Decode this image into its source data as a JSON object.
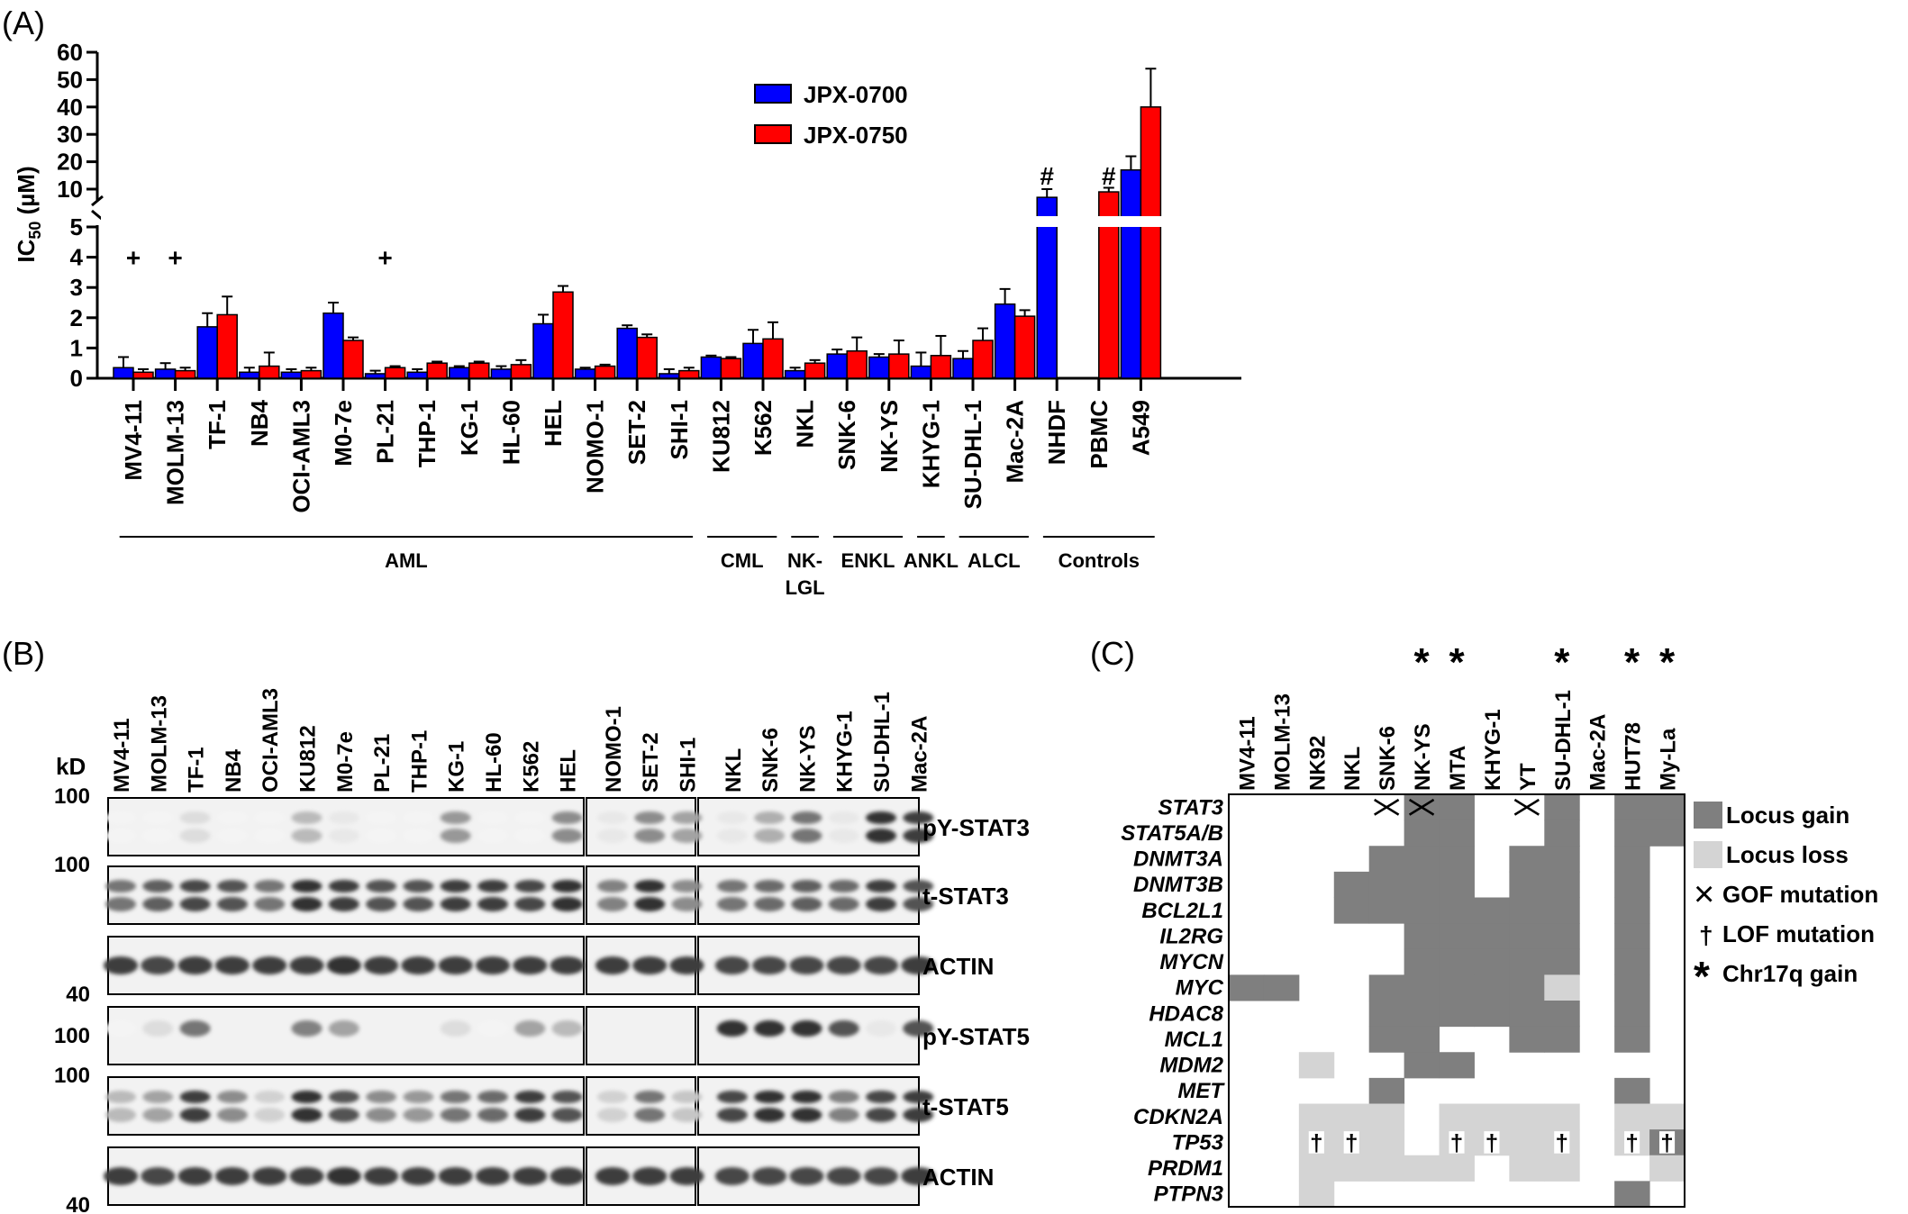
{
  "panel_labels": {
    "a": "(A)",
    "b": "(B)",
    "c": "(C)"
  },
  "colors": {
    "jpx0700": "#0000ff",
    "jpx0750": "#ff0000",
    "legend_0700_text": "#1a6fd6",
    "legend_0750_text": "#ff0000",
    "gain": "#7f7f7f",
    "loss": "#d4d4d4",
    "chr17q": "#ff0000"
  },
  "chart_data": [
    {
      "type": "bar",
      "ylabel_main": "IC",
      "ylabel_sub": "50",
      "ylabel_unit": " (µM)",
      "y_axis_break": true,
      "ylim_lower": [
        0,
        5
      ],
      "ylim_upper": [
        10,
        60
      ],
      "yticks_lower": [
        "0",
        "1",
        "2",
        "3",
        "4",
        "5"
      ],
      "yticks_upper": [
        "10",
        "20",
        "30",
        "40",
        "50",
        "60"
      ],
      "series": [
        {
          "name": "JPX-0700",
          "color": "#0000ff",
          "values": [
            0.35,
            0.3,
            1.7,
            0.2,
            0.2,
            2.15,
            0.15,
            0.2,
            0.35,
            0.3,
            1.8,
            0.3,
            1.65,
            0.15,
            0.7,
            1.15,
            0.25,
            0.8,
            0.7,
            0.4,
            0.65,
            2.45,
            7,
            null,
            17
          ],
          "errors": [
            0.35,
            0.2,
            0.45,
            0.15,
            0.1,
            0.35,
            0.1,
            0.1,
            0.05,
            0.1,
            0.3,
            0.05,
            0.1,
            0.15,
            0.05,
            0.45,
            0.1,
            0.15,
            0.1,
            0.45,
            0.25,
            0.5,
            3,
            null,
            5
          ]
        },
        {
          "name": "JPX-0750",
          "color": "#ff0000",
          "values": [
            0.2,
            0.25,
            2.1,
            0.4,
            0.25,
            1.25,
            0.35,
            0.5,
            0.5,
            0.45,
            2.85,
            0.4,
            1.35,
            0.25,
            0.65,
            1.3,
            0.5,
            0.9,
            0.8,
            0.75,
            1.25,
            2.05,
            null,
            9,
            40
          ],
          "errors": [
            0.1,
            0.1,
            0.6,
            0.45,
            0.1,
            0.1,
            0.05,
            0.05,
            0.05,
            0.15,
            0.2,
            0.05,
            0.1,
            0.1,
            0.05,
            0.55,
            0.1,
            0.45,
            0.45,
            0.65,
            0.4,
            0.2,
            null,
            1.5,
            14
          ]
        }
      ],
      "categories": [
        "MV4-11",
        "MOLM-13",
        "TF-1",
        "NB4",
        "OCI-AML3",
        "M0-7e",
        "PL-21",
        "THP-1",
        "KG-1",
        "HL-60",
        "HEL",
        "NOMO-1",
        "SET-2",
        "SHI-1",
        "KU812",
        "K562",
        "NKL",
        "SNK-6",
        "NK-YS",
        "KHYG-1",
        "SU-DHL-1",
        "Mac-2A",
        "NHDF",
        "PBMC",
        "A549"
      ],
      "annotations": [
        {
          "category_index": 0,
          "text": "+",
          "y": 4
        },
        {
          "category_index": 1,
          "text": "+",
          "y": 4
        },
        {
          "category_index": 6,
          "text": "+",
          "y": 4
        },
        {
          "category_index": 22,
          "text": "#",
          "y": 15
        },
        {
          "category_index": 23,
          "text": "#",
          "y": 15
        }
      ],
      "groups": [
        {
          "label": "AML",
          "from": 0,
          "to": 13
        },
        {
          "label": "CML",
          "from": 14,
          "to": 15
        },
        {
          "label": "NK-",
          "label2": "LGL",
          "from": 16,
          "to": 16
        },
        {
          "label": "ENKL",
          "from": 17,
          "to": 18
        },
        {
          "label": "ANKL",
          "from": 19,
          "to": 19
        },
        {
          "label": "ALCL",
          "from": 20,
          "to": 21
        },
        {
          "label": "Controls",
          "from": 22,
          "to": 24
        }
      ]
    },
    {
      "type": "heatmap",
      "columns": [
        "MV4-11",
        "MOLM-13",
        "NK92",
        "NKL",
        "SNK-6",
        "NK-YS",
        "MTA",
        "KHYG-1",
        "YT",
        "SU-DHL-1",
        "Mac-2A",
        "HUT78",
        "My-La"
      ],
      "chr17q_gain_columns": [
        5,
        6,
        9,
        11,
        12
      ],
      "rows": [
        "STAT3",
        "STAT5A/B",
        "DNMT3A",
        "DNMT3B",
        "BCL2L1",
        "IL2RG",
        "MYCN",
        "MYC",
        "HDAC8",
        "MCL1",
        "MDM2",
        "MET",
        "CDKN2A",
        "TP53",
        "PRDM1",
        "PTPN3"
      ],
      "cell_codes": {
        "0": "none",
        "1": "Locus gain",
        "2": "Locus loss",
        "3": "GOF mutation",
        "4": "LOF mutation"
      },
      "cells": [
        [
          0,
          0,
          0,
          0,
          3,
          3,
          1,
          0,
          3,
          1,
          0,
          1,
          1
        ],
        [
          0,
          0,
          0,
          0,
          0,
          1,
          1,
          0,
          0,
          1,
          0,
          1,
          1
        ],
        [
          0,
          0,
          0,
          0,
          1,
          1,
          1,
          0,
          1,
          1,
          0,
          1,
          0
        ],
        [
          0,
          0,
          0,
          1,
          1,
          1,
          1,
          0,
          1,
          1,
          0,
          1,
          0
        ],
        [
          0,
          0,
          0,
          1,
          1,
          1,
          1,
          1,
          1,
          1,
          0,
          1,
          0
        ],
        [
          0,
          0,
          0,
          0,
          0,
          1,
          1,
          1,
          1,
          1,
          0,
          1,
          0
        ],
        [
          0,
          0,
          0,
          0,
          0,
          1,
          1,
          1,
          1,
          1,
          0,
          1,
          0
        ],
        [
          1,
          1,
          0,
          0,
          1,
          1,
          1,
          1,
          1,
          2,
          0,
          1,
          0
        ],
        [
          0,
          0,
          0,
          0,
          1,
          1,
          1,
          1,
          1,
          1,
          0,
          1,
          0
        ],
        [
          0,
          0,
          0,
          0,
          1,
          1,
          0,
          0,
          1,
          1,
          0,
          1,
          0
        ],
        [
          0,
          0,
          2,
          0,
          0,
          1,
          1,
          0,
          0,
          0,
          0,
          0,
          0
        ],
        [
          0,
          0,
          0,
          0,
          1,
          0,
          0,
          0,
          0,
          0,
          0,
          1,
          0
        ],
        [
          0,
          0,
          2,
          2,
          2,
          0,
          2,
          2,
          2,
          2,
          0,
          2,
          2
        ],
        [
          0,
          0,
          4,
          4,
          2,
          0,
          4,
          4,
          2,
          4,
          0,
          4,
          4
        ],
        [
          0,
          0,
          2,
          2,
          2,
          2,
          2,
          0,
          2,
          2,
          0,
          0,
          2
        ],
        [
          0,
          0,
          2,
          0,
          0,
          0,
          0,
          0,
          0,
          0,
          0,
          1,
          0
        ]
      ],
      "tp53_myla_background": "Locus gain",
      "legend": [
        {
          "kind": "gain",
          "label": "Locus gain"
        },
        {
          "kind": "loss",
          "label": "Locus loss"
        },
        {
          "kind": "gof",
          "label": "GOF mutation"
        },
        {
          "kind": "lof",
          "label": "LOF mutation"
        },
        {
          "kind": "chr17q",
          "label": "Chr17q gain"
        }
      ],
      "star": "*",
      "cross": "×",
      "dagger": "†"
    }
  ],
  "western": {
    "kd_label": "kD",
    "lanes": [
      "MV4-11",
      "MOLM-13",
      "TF-1",
      "NB4",
      "OCI-AML3",
      "KU812",
      "M0-7e",
      "PL-21",
      "THP-1",
      "KG-1",
      "HL-60",
      "K562",
      "HEL",
      "NOMO-1",
      "SET-2",
      "SHI-1",
      "NKL",
      "SNK-6",
      "NK-YS",
      "KHYG-1",
      "SU-DHL-1",
      "Mac-2A"
    ],
    "blots": [
      {
        "label": "pY-STAT3",
        "marker": "100",
        "marker_pos": "top"
      },
      {
        "label": "t-STAT3",
        "marker": "100",
        "marker_pos": "top"
      },
      {
        "label": "ACTIN",
        "marker": "40",
        "marker_pos": "bottom"
      },
      {
        "label": "pY-STAT5",
        "marker": "100",
        "marker_pos": "mid"
      },
      {
        "label": "t-STAT5",
        "marker": "100",
        "marker_pos": "top"
      },
      {
        "label": "ACTIN",
        "marker": "40",
        "marker_pos": "bottom"
      }
    ],
    "intensity": [
      [
        0.05,
        0.05,
        0.15,
        0.05,
        0.05,
        0.3,
        0.1,
        0.05,
        0.05,
        0.45,
        0.05,
        0.05,
        0.5,
        0.1,
        0.5,
        0.4,
        0.1,
        0.35,
        0.6,
        0.1,
        0.9,
        0.85
      ],
      [
        0.6,
        0.7,
        0.8,
        0.75,
        0.6,
        0.9,
        0.85,
        0.75,
        0.75,
        0.85,
        0.85,
        0.8,
        0.9,
        0.55,
        0.9,
        0.5,
        0.6,
        0.65,
        0.7,
        0.65,
        0.85,
        0.75
      ],
      [
        0.85,
        0.8,
        0.85,
        0.85,
        0.85,
        0.85,
        0.9,
        0.85,
        0.85,
        0.85,
        0.85,
        0.85,
        0.85,
        0.85,
        0.85,
        0.85,
        0.8,
        0.8,
        0.8,
        0.8,
        0.8,
        0.85
      ],
      [
        0.05,
        0.15,
        0.6,
        0.03,
        0.03,
        0.55,
        0.4,
        0.03,
        0.03,
        0.15,
        0.05,
        0.4,
        0.3,
        0.02,
        0.02,
        0.02,
        0.9,
        0.9,
        0.9,
        0.75,
        0.1,
        0.75
      ],
      [
        0.3,
        0.4,
        0.85,
        0.5,
        0.2,
        0.9,
        0.75,
        0.5,
        0.45,
        0.6,
        0.65,
        0.85,
        0.75,
        0.2,
        0.6,
        0.25,
        0.8,
        0.9,
        0.9,
        0.55,
        0.8,
        0.85
      ],
      [
        0.85,
        0.8,
        0.85,
        0.85,
        0.85,
        0.85,
        0.9,
        0.85,
        0.85,
        0.85,
        0.85,
        0.85,
        0.85,
        0.85,
        0.85,
        0.85,
        0.8,
        0.8,
        0.8,
        0.8,
        0.8,
        0.85
      ]
    ]
  }
}
